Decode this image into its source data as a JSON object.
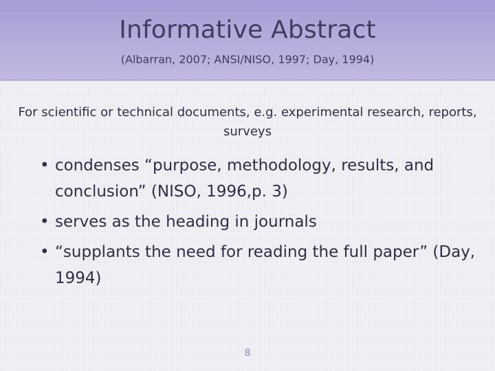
{
  "slide": {
    "title": "Informative Abstract",
    "subtitle": "(Albarran, 2007; ANSI/NISO, 1997;  Day, 1994)",
    "intro": "For scientific or technical documents, e.g.  experimental research, reports,  surveys",
    "bullets": [
      "condenses “purpose, methodology, results, and conclusion” (NISO, 1996,p. 3)",
      "serves as the heading in journals",
      "“supplants the need for reading the full paper” (Day, 1994)"
    ],
    "bullet_glyph": "•",
    "page_number": "8"
  },
  "colors": {
    "header": "#b4aadb",
    "title_text": "#3f3d61",
    "body_text": "#2f2d48",
    "page_number": "#8f86c6",
    "background": "#eeedf1"
  }
}
